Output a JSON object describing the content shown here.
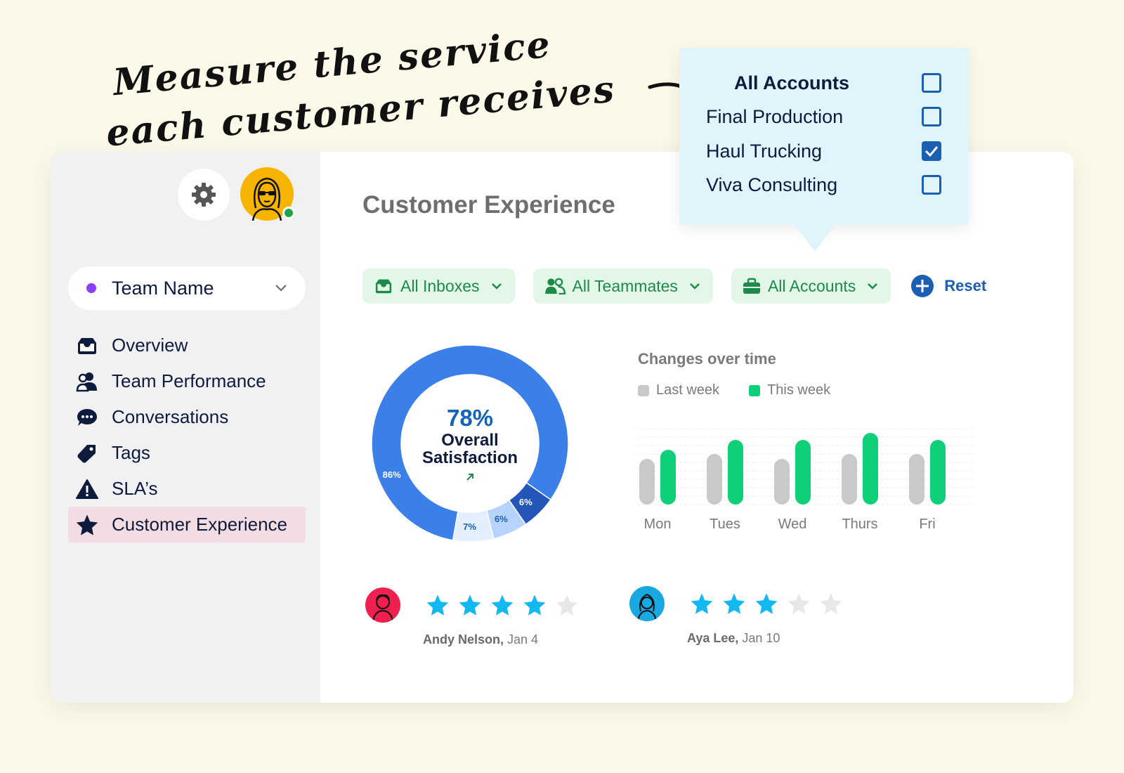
{
  "annotation": {
    "line1": "Measure the service",
    "line2": "each customer receives"
  },
  "sidebar": {
    "team_select": "Team Name",
    "items": [
      {
        "label": "Overview",
        "icon": "inbox-icon"
      },
      {
        "label": "Team Performance",
        "icon": "people-icon"
      },
      {
        "label": "Conversations",
        "icon": "chat-bubble-icon"
      },
      {
        "label": "Tags",
        "icon": "tag-icon"
      },
      {
        "label": "SLA’s",
        "icon": "warning-icon"
      },
      {
        "label": "Customer Experience",
        "icon": "star-icon",
        "active": true
      }
    ]
  },
  "main": {
    "title": "Customer Experience",
    "filters": {
      "inboxes": "All Inboxes",
      "teammates": "All Teammates",
      "accounts": "All Accounts",
      "reset": "Reset"
    }
  },
  "accounts_dropdown": {
    "options": [
      {
        "label": "All Accounts",
        "checked": false,
        "header": true
      },
      {
        "label": "Final Production",
        "checked": false
      },
      {
        "label": "Haul Trucking",
        "checked": true
      },
      {
        "label": "Viva Consulting",
        "checked": false
      }
    ]
  },
  "chart_data": [
    {
      "type": "pie",
      "center_value": "78%",
      "center_label_line1": "Overall",
      "center_label_line2": "Satisfaction",
      "slices": [
        {
          "label": "86%",
          "value": 86,
          "color": "#3a80e8"
        },
        {
          "label": "6%",
          "value": 6,
          "color": "#2356b8"
        },
        {
          "label": "6%",
          "value": 6,
          "color": "#b6d4fb"
        },
        {
          "label": "7%",
          "value": 7,
          "color": "#e3effd"
        }
      ]
    },
    {
      "type": "bar",
      "title": "Changes over time",
      "categories": [
        "Mon",
        "Tues",
        "Wed",
        "Thurs",
        "Fri"
      ],
      "series": [
        {
          "name": "Last week",
          "values": [
            65,
            72,
            65,
            72,
            72
          ],
          "color": "#c9c9c9"
        },
        {
          "name": "This week",
          "values": [
            78,
            92,
            92,
            102,
            92
          ],
          "color": "#0fd07a"
        }
      ],
      "ylim": [
        0,
        110
      ],
      "grid": true,
      "legend": "top-left"
    }
  ],
  "reviews": [
    {
      "name": "Andy Nelson,",
      "date": "Jan 4",
      "rating": 4,
      "avatar_color": "#ef1f4f"
    },
    {
      "name": "Aya Lee,",
      "date": "Jan 10",
      "rating": 3,
      "avatar_color": "#1aa8e0"
    }
  ],
  "colors": {
    "background": "#fdf9e8",
    "accent_green": "#1d8a4a",
    "accent_blue": "#1b5fb3",
    "star": "#12b8f0",
    "star_empty": "#e8e8e8"
  }
}
